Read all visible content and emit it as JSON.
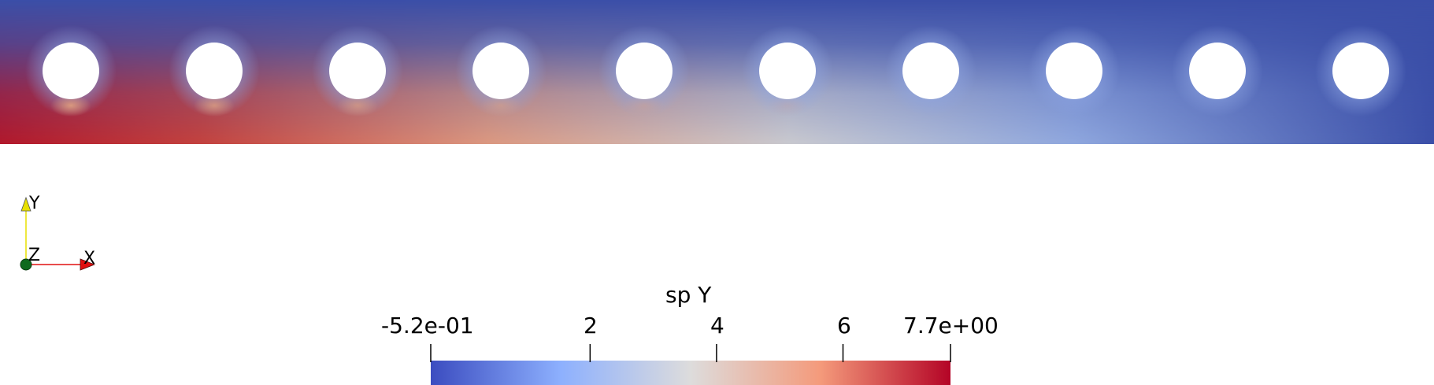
{
  "scalar_bar": {
    "title": "sp Y",
    "min_label": "-5.2e-01",
    "max_label": "7.7e+00",
    "ticks": [
      "2",
      "4",
      "6"
    ],
    "range": [
      -0.52,
      7.7
    ],
    "tick_values": [
      2,
      4,
      6
    ],
    "colormap": [
      "#3b4cc0",
      "#8db0fe",
      "#dddcdc",
      "#f49a7b",
      "#b40426"
    ]
  },
  "orientation_axes": {
    "x_label": "X",
    "y_label": "Y",
    "z_label": "Z",
    "x_color": "#e01010",
    "y_color": "#e8e000",
    "z_color": "#0f6a1e"
  },
  "model": {
    "hole_count": 10,
    "background_color": "#3b4fa8",
    "stress_field_colors": [
      "#3b4fa8",
      "#7e9be8",
      "#cfd4dc",
      "#e3a487",
      "#b2182b"
    ]
  }
}
